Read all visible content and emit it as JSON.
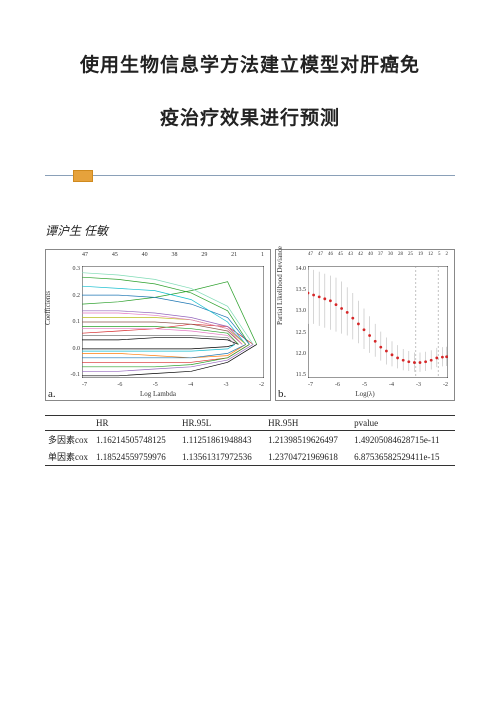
{
  "title": {
    "line1": "使用生物信息学方法建立模型对肝癌免",
    "line2": "疫治疗效果进行预测"
  },
  "authors": "谭沪生 任敏",
  "figA": {
    "label": "a.",
    "xlabel": "Log Lambda",
    "ylabel": "Coefficients",
    "top_df_ticks": [
      "47",
      "45",
      "40",
      "38",
      "29",
      "21",
      "1"
    ],
    "x_ticks": [
      "-7",
      "-6",
      "-5",
      "-4",
      "-3",
      "-2"
    ],
    "y_ticks": [
      "0.3",
      "0.2",
      "0.1",
      "0.0",
      "-0.1"
    ],
    "xlim": [
      -7,
      -2
    ],
    "ylim": [
      -0.15,
      0.35
    ],
    "lines": [
      {
        "color": "#d62728",
        "pts": [
          [
            -7,
            0.05
          ],
          [
            -6,
            0.06
          ],
          [
            -5,
            0.07
          ],
          [
            -4,
            0.09
          ],
          [
            -3,
            0.08
          ],
          [
            -2.3,
            0.0
          ]
        ]
      },
      {
        "color": "#2ca02c",
        "pts": [
          [
            -7,
            0.18
          ],
          [
            -6,
            0.19
          ],
          [
            -5,
            0.21
          ],
          [
            -4,
            0.24
          ],
          [
            -3,
            0.28
          ],
          [
            -2.2,
            0.0
          ]
        ]
      },
      {
        "color": "#2ca02c",
        "pts": [
          [
            -7,
            0.3
          ],
          [
            -6,
            0.29
          ],
          [
            -5,
            0.27
          ],
          [
            -4,
            0.23
          ],
          [
            -3,
            0.15
          ],
          [
            -2.4,
            0.0
          ]
        ]
      },
      {
        "color": "#1f77b4",
        "pts": [
          [
            -7,
            0.22
          ],
          [
            -6,
            0.22
          ],
          [
            -5,
            0.21
          ],
          [
            -4,
            0.18
          ],
          [
            -3,
            0.12
          ],
          [
            -2.4,
            0.0
          ]
        ]
      },
      {
        "color": "#9467bd",
        "pts": [
          [
            -7,
            0.15
          ],
          [
            -6,
            0.15
          ],
          [
            -5,
            0.14
          ],
          [
            -4,
            0.12
          ],
          [
            -3,
            0.08
          ],
          [
            -2.5,
            0.0
          ]
        ]
      },
      {
        "color": "#17becf",
        "pts": [
          [
            -7,
            0.26
          ],
          [
            -6,
            0.25
          ],
          [
            -5,
            0.24
          ],
          [
            -4,
            0.2
          ],
          [
            -3,
            0.1
          ],
          [
            -2.5,
            0.0
          ]
        ]
      },
      {
        "color": "#7fdbb5",
        "pts": [
          [
            -7,
            0.32
          ],
          [
            -6,
            0.31
          ],
          [
            -5,
            0.29
          ],
          [
            -4,
            0.25
          ],
          [
            -3,
            0.17
          ],
          [
            -2.3,
            0.0
          ]
        ]
      },
      {
        "color": "#000000",
        "pts": [
          [
            -7,
            0.02
          ],
          [
            -6,
            0.02
          ],
          [
            -5,
            0.03
          ],
          [
            -4,
            0.03
          ],
          [
            -3,
            0.02
          ],
          [
            -2.7,
            0.0
          ]
        ]
      },
      {
        "color": "#000000",
        "pts": [
          [
            -7,
            -0.02
          ],
          [
            -6,
            -0.02
          ],
          [
            -5,
            -0.02
          ],
          [
            -4,
            -0.02
          ],
          [
            -3,
            -0.01
          ],
          [
            -2.8,
            0.0
          ]
        ]
      },
      {
        "color": "#8c564b",
        "pts": [
          [
            -7,
            0.1
          ],
          [
            -6,
            0.1
          ],
          [
            -5,
            0.1
          ],
          [
            -4,
            0.09
          ],
          [
            -3,
            0.06
          ],
          [
            -2.6,
            0.0
          ]
        ]
      },
      {
        "color": "#e377c2",
        "pts": [
          [
            -7,
            0.07
          ],
          [
            -6,
            0.07
          ],
          [
            -5,
            0.07
          ],
          [
            -4,
            0.06
          ],
          [
            -3,
            0.04
          ],
          [
            -2.7,
            0.0
          ]
        ]
      },
      {
        "color": "#bcbd22",
        "pts": [
          [
            -7,
            0.12
          ],
          [
            -6,
            0.12
          ],
          [
            -5,
            0.12
          ],
          [
            -4,
            0.11
          ],
          [
            -3,
            0.07
          ],
          [
            -2.5,
            0.0
          ]
        ]
      },
      {
        "color": "#ff7f0e",
        "pts": [
          [
            -7,
            -0.04
          ],
          [
            -6,
            -0.04
          ],
          [
            -5,
            -0.05
          ],
          [
            -4,
            -0.06
          ],
          [
            -3,
            -0.05
          ],
          [
            -2.5,
            0.0
          ]
        ]
      },
      {
        "color": "#d62728",
        "pts": [
          [
            -7,
            -0.08
          ],
          [
            -6,
            -0.08
          ],
          [
            -5,
            -0.08
          ],
          [
            -4,
            -0.08
          ],
          [
            -3,
            -0.06
          ],
          [
            -2.4,
            0.0
          ]
        ]
      },
      {
        "color": "#1f77b4",
        "pts": [
          [
            -7,
            -0.06
          ],
          [
            -6,
            -0.06
          ],
          [
            -5,
            -0.06
          ],
          [
            -4,
            -0.06
          ],
          [
            -3,
            -0.04
          ],
          [
            -2.5,
            0.0
          ]
        ]
      },
      {
        "color": "#2ca02c",
        "pts": [
          [
            -7,
            -0.1
          ],
          [
            -6,
            -0.1
          ],
          [
            -5,
            -0.1
          ],
          [
            -4,
            -0.09
          ],
          [
            -3,
            -0.06
          ],
          [
            -2.4,
            0.0
          ]
        ]
      },
      {
        "color": "#9467bd",
        "pts": [
          [
            -7,
            -0.12
          ],
          [
            -6,
            -0.12
          ],
          [
            -5,
            -0.11
          ],
          [
            -4,
            -0.1
          ],
          [
            -3,
            -0.07
          ],
          [
            -2.3,
            0.0
          ]
        ]
      },
      {
        "color": "#7f7f7f",
        "pts": [
          [
            -7,
            0.04
          ],
          [
            -6,
            0.04
          ],
          [
            -5,
            0.04
          ],
          [
            -4,
            0.04
          ],
          [
            -3,
            0.03
          ],
          [
            -2.8,
            0.0
          ]
        ]
      },
      {
        "color": "#17becf",
        "pts": [
          [
            -7,
            -0.03
          ],
          [
            -6,
            -0.03
          ],
          [
            -5,
            -0.03
          ],
          [
            -4,
            -0.03
          ],
          [
            -3,
            -0.02
          ],
          [
            -2.8,
            0.0
          ]
        ]
      },
      {
        "color": "#e377c2",
        "pts": [
          [
            -7,
            0.14
          ],
          [
            -6,
            0.14
          ],
          [
            -5,
            0.13
          ],
          [
            -4,
            0.11
          ],
          [
            -3,
            0.07
          ],
          [
            -2.6,
            0.0
          ]
        ]
      },
      {
        "color": "#000000",
        "pts": [
          [
            -7,
            -0.14
          ],
          [
            -6,
            -0.14
          ],
          [
            -5,
            -0.13
          ],
          [
            -4,
            -0.12
          ],
          [
            -3,
            -0.08
          ],
          [
            -2.2,
            0.0
          ]
        ]
      },
      {
        "color": "#2ca02c",
        "pts": [
          [
            -7,
            0.08
          ],
          [
            -6,
            0.08
          ],
          [
            -5,
            0.08
          ],
          [
            -4,
            0.07
          ],
          [
            -3,
            0.05
          ],
          [
            -2.7,
            0.0
          ]
        ]
      }
    ]
  },
  "figB": {
    "label": "b.",
    "xlabel": "Log(λ)",
    "ylabel": "Partial Likelihood Deviance",
    "top_df_ticks": [
      "47",
      "47",
      "46",
      "45",
      "43",
      "42",
      "40",
      "37",
      "30",
      "28",
      "25",
      "19",
      "12",
      "5",
      "2"
    ],
    "x_ticks": [
      "-7",
      "-6",
      "-5",
      "-4",
      "-3",
      "-2"
    ],
    "y_ticks": [
      "14.0",
      "13.5",
      "13.0",
      "12.5",
      "12.0",
      "11.5"
    ],
    "xlim": [
      -7,
      -2
    ],
    "ylim": [
      11.3,
      14.2
    ],
    "vlines": [
      -3.15,
      -2.35
    ],
    "points": [
      {
        "x": -7.0,
        "y": 13.5,
        "lo": 12.7,
        "hi": 14.1
      },
      {
        "x": -6.8,
        "y": 13.45,
        "lo": 12.7,
        "hi": 14.1
      },
      {
        "x": -6.6,
        "y": 13.4,
        "lo": 12.65,
        "hi": 14.05
      },
      {
        "x": -6.4,
        "y": 13.35,
        "lo": 12.6,
        "hi": 14.0
      },
      {
        "x": -6.2,
        "y": 13.3,
        "lo": 12.55,
        "hi": 13.95
      },
      {
        "x": -6.0,
        "y": 13.2,
        "lo": 12.5,
        "hi": 13.9
      },
      {
        "x": -5.8,
        "y": 13.1,
        "lo": 12.45,
        "hi": 13.8
      },
      {
        "x": -5.6,
        "y": 13.0,
        "lo": 12.4,
        "hi": 13.65
      },
      {
        "x": -5.4,
        "y": 12.85,
        "lo": 12.3,
        "hi": 13.5
      },
      {
        "x": -5.2,
        "y": 12.7,
        "lo": 12.2,
        "hi": 13.3
      },
      {
        "x": -5.0,
        "y": 12.55,
        "lo": 12.05,
        "hi": 13.1
      },
      {
        "x": -4.8,
        "y": 12.4,
        "lo": 11.95,
        "hi": 12.9
      },
      {
        "x": -4.6,
        "y": 12.25,
        "lo": 11.85,
        "hi": 12.7
      },
      {
        "x": -4.4,
        "y": 12.1,
        "lo": 11.75,
        "hi": 12.5
      },
      {
        "x": -4.2,
        "y": 12.0,
        "lo": 11.65,
        "hi": 12.35
      },
      {
        "x": -4.0,
        "y": 11.9,
        "lo": 11.6,
        "hi": 12.25
      },
      {
        "x": -3.8,
        "y": 11.82,
        "lo": 11.55,
        "hi": 12.15
      },
      {
        "x": -3.6,
        "y": 11.76,
        "lo": 11.5,
        "hi": 12.05
      },
      {
        "x": -3.4,
        "y": 11.72,
        "lo": 11.48,
        "hi": 12.0
      },
      {
        "x": -3.2,
        "y": 11.7,
        "lo": 11.46,
        "hi": 11.96
      },
      {
        "x": -3.0,
        "y": 11.7,
        "lo": 11.46,
        "hi": 11.96
      },
      {
        "x": -2.8,
        "y": 11.72,
        "lo": 11.48,
        "hi": 11.98
      },
      {
        "x": -2.6,
        "y": 11.76,
        "lo": 11.52,
        "hi": 12.02
      },
      {
        "x": -2.4,
        "y": 11.82,
        "lo": 11.58,
        "hi": 12.08
      },
      {
        "x": -2.2,
        "y": 11.84,
        "lo": 11.6,
        "hi": 12.1
      },
      {
        "x": -2.05,
        "y": 11.85,
        "lo": 11.61,
        "hi": 12.11
      }
    ]
  },
  "table": {
    "headers": [
      "",
      "HR",
      "HR.95L",
      "HR.95H",
      "pvalue"
    ],
    "rows": [
      {
        "label": "多因素cox",
        "HR": "1.16214505748125",
        "HR95L": "1.11251861948843",
        "HR95H": "1.21398519626497",
        "pvalue": "1.49205084628715e-11"
      },
      {
        "label": "单因素cox",
        "HR": "1.18524559759976",
        "HR95L": "1.13561317972536",
        "HR95H": "1.23704721969618",
        "pvalue": "6.87536582529411e-15"
      }
    ]
  }
}
